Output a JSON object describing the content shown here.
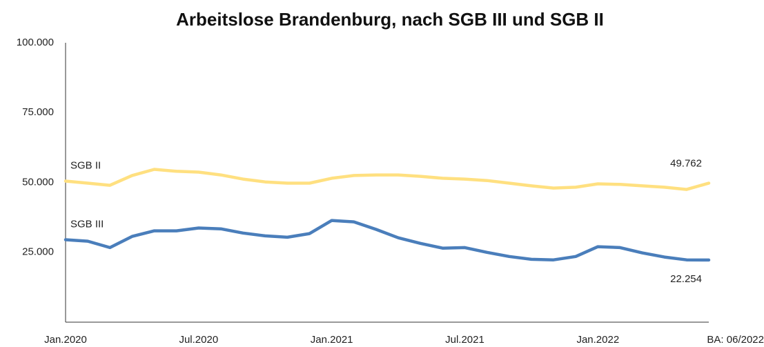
{
  "chart_data": {
    "type": "line",
    "title": "Arbeitslose Brandenburg, nach SGB III und SGB II",
    "source": "BA: 06/2022",
    "categories": [
      "Jan.2020",
      null,
      null,
      null,
      null,
      null,
      "Jul.2020",
      null,
      null,
      null,
      null,
      null,
      "Jan.2021",
      null,
      null,
      null,
      null,
      null,
      "Jul.2021",
      null,
      null,
      null,
      null,
      null,
      "Jan.2022",
      null,
      null,
      null,
      null,
      null
    ],
    "series": [
      {
        "name": "SGB II",
        "color": "#ffe080",
        "values": [
          50500,
          49750,
          49000,
          52500,
          54700,
          54000,
          53700,
          52700,
          51200,
          50200,
          49750,
          49750,
          51500,
          52500,
          52700,
          52700,
          52200,
          51500,
          51200,
          50700,
          49750,
          48800,
          48000,
          48300,
          49500,
          49300,
          48800,
          48300,
          47500,
          49762
        ],
        "value_labels": [
          null,
          null,
          null,
          null,
          null,
          null,
          null,
          null,
          null,
          null,
          null,
          null,
          null,
          null,
          null,
          null,
          null,
          null,
          null,
          null,
          null,
          null,
          null,
          null,
          null,
          null,
          null,
          null,
          null,
          "49.762"
        ]
      },
      {
        "name": "SGB III",
        "color": "#4a7ebb",
        "values": [
          29500,
          29000,
          26700,
          30700,
          32700,
          32700,
          33700,
          33400,
          31900,
          30900,
          30400,
          31700,
          36400,
          35900,
          33200,
          30200,
          28200,
          26500,
          26700,
          25000,
          23500,
          22500,
          22300,
          23500,
          27000,
          26700,
          24800,
          23300,
          22300,
          22254
        ],
        "value_labels": [
          null,
          null,
          null,
          null,
          null,
          null,
          null,
          null,
          null,
          null,
          null,
          null,
          null,
          null,
          null,
          null,
          null,
          null,
          null,
          null,
          null,
          null,
          null,
          null,
          null,
          null,
          null,
          null,
          null,
          "22.254"
        ]
      }
    ],
    "ylim": [
      0,
      100000
    ],
    "yticks": [
      {
        "value": 25000,
        "label": "25.000"
      },
      {
        "value": 50000,
        "label": "50.000"
      },
      {
        "value": 75000,
        "label": "75.000"
      },
      {
        "value": 100000,
        "label": "100.000"
      }
    ],
    "grid": false
  }
}
